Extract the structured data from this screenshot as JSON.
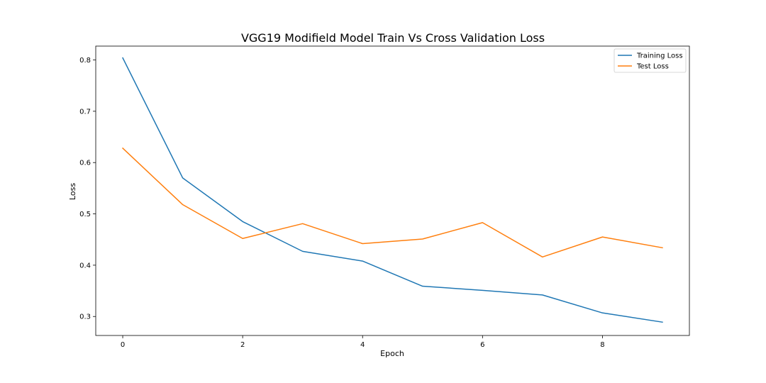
{
  "chart_data": {
    "type": "line",
    "title": "VGG19 Modifield Model Train Vs Cross Validation Loss",
    "xlabel": "Epoch",
    "ylabel": "Loss",
    "x": [
      0,
      1,
      2,
      3,
      4,
      5,
      6,
      7,
      8,
      9
    ],
    "xlim": [
      -0.45,
      9.45
    ],
    "ylim": [
      0.263,
      0.827
    ],
    "xticks": [
      0,
      2,
      4,
      6,
      8
    ],
    "yticks": [
      0.3,
      0.4,
      0.5,
      0.6,
      0.7,
      0.8
    ],
    "grid": false,
    "legend_position": "top-right",
    "series": [
      {
        "name": "Training Loss",
        "color": "#1f77b4",
        "values": [
          0.804,
          0.57,
          0.485,
          0.427,
          0.408,
          0.359,
          0.351,
          0.342,
          0.307,
          0.289
        ]
      },
      {
        "name": "Test Loss",
        "color": "#ff7f0e",
        "values": [
          0.628,
          0.518,
          0.452,
          0.481,
          0.442,
          0.451,
          0.483,
          0.416,
          0.455,
          0.434
        ]
      }
    ]
  }
}
